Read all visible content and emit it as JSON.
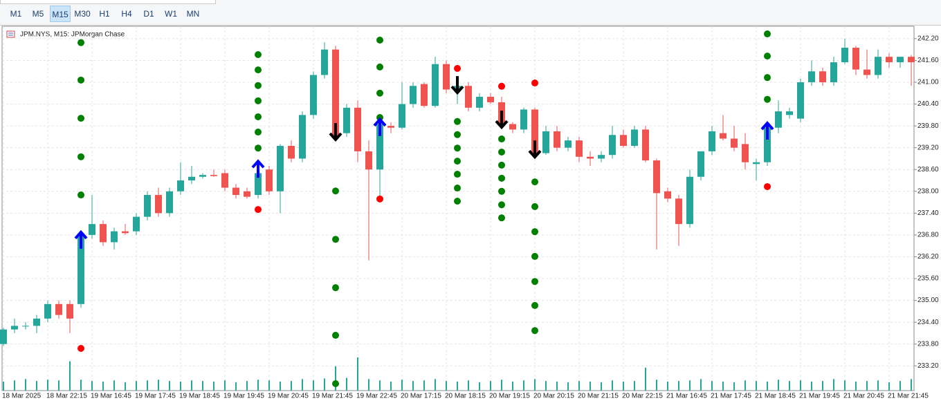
{
  "toolbar": {
    "buttons": [
      "M1",
      "M5",
      "M15",
      "M30",
      "H1",
      "H4",
      "D1",
      "W1",
      "MN"
    ],
    "active": 2
  },
  "chart_data": {
    "type": "candlestick",
    "title": "JPM.NYS, M15:  JPMorgan Chase",
    "categories": [
      "18 Mar 2025",
      null,
      null,
      null,
      "18 Mar 22:15",
      null,
      null,
      null,
      "19 Mar 16:45",
      null,
      null,
      null,
      "19 Mar 17:45",
      null,
      null,
      null,
      "19 Mar 18:45",
      null,
      null,
      null,
      "19 Mar 19:45",
      null,
      null,
      null,
      "19 Mar 20:45",
      null,
      null,
      null,
      "19 Mar 21:45",
      null,
      null,
      null,
      "19 Mar 22:45",
      null,
      null,
      null,
      "20 Mar 17:15",
      null,
      null,
      null,
      "20 Mar 18:15",
      null,
      null,
      null,
      "20 Mar 19:15",
      null,
      null,
      null,
      "20 Mar 20:15",
      null,
      null,
      null,
      "20 Mar 21:15",
      null,
      null,
      null,
      "20 Mar 22:15",
      null,
      null,
      null,
      "21 Mar 16:45",
      null,
      null,
      null,
      "21 Mar 17:45",
      null,
      null,
      null,
      "21 Mar 18:45",
      null,
      null,
      null,
      "21 Mar 19:45",
      null,
      null,
      null,
      "21 Mar 20:45",
      null,
      null,
      null,
      "21 Mar 21:45",
      null,
      null
    ],
    "open": [
      233.8,
      234.2,
      234.3,
      234.3,
      234.5,
      234.9,
      234.9,
      234.9,
      236.8,
      237.1,
      236.6,
      236.9,
      236.9,
      237.3,
      237.9,
      237.4,
      238.0,
      238.3,
      238.4,
      238.45,
      238.5,
      238.1,
      238.0,
      237.9,
      238.6,
      238.0,
      239.25,
      238.9,
      240.1,
      241.2,
      241.9,
      239.6,
      240.3,
      239.1,
      238.6,
      239.8,
      239.75,
      240.4,
      240.95,
      240.35,
      241.5,
      240.8,
      240.9,
      240.3,
      240.6,
      240.45,
      239.85,
      239.7,
      240.25,
      239.05,
      239.65,
      239.2,
      239.4,
      238.95,
      238.9,
      239.0,
      239.55,
      239.25,
      239.7,
      238.85,
      238.0,
      237.8,
      237.1,
      238.4,
      239.1,
      239.6,
      239.45,
      239.3,
      238.75,
      238.8,
      239.75,
      240.1,
      240.0,
      241.0,
      241.3,
      241.0,
      241.55,
      241.95,
      241.35,
      241.2,
      241.7,
      241.55,
      241.7
    ],
    "high": [
      234.25,
      234.5,
      234.4,
      234.6,
      235.0,
      235.0,
      235.0,
      236.9,
      237.9,
      237.2,
      237.0,
      237.1,
      237.4,
      238.0,
      238.1,
      238.1,
      238.8,
      238.7,
      238.5,
      238.6,
      238.6,
      238.2,
      238.1,
      238.7,
      238.7,
      239.3,
      239.4,
      240.2,
      241.3,
      242.1,
      242.0,
      240.4,
      240.5,
      239.4,
      239.9,
      239.9,
      241.0,
      241.0,
      241.0,
      241.7,
      241.6,
      241.1,
      241.0,
      240.7,
      240.7,
      240.6,
      239.9,
      240.3,
      240.3,
      239.8,
      239.8,
      239.5,
      239.5,
      239.1,
      239.1,
      239.8,
      239.7,
      239.8,
      239.8,
      238.9,
      238.1,
      237.9,
      238.6,
      239.1,
      239.8,
      240.1,
      239.8,
      239.6,
      238.9,
      239.8,
      240.5,
      240.3,
      241.1,
      241.6,
      241.4,
      241.7,
      242.2,
      242.0,
      241.9,
      241.9,
      241.8,
      241.7,
      241.75
    ],
    "low": [
      233.75,
      234.1,
      234.2,
      234.1,
      234.4,
      234.5,
      234.1,
      234.8,
      236.7,
      236.5,
      236.4,
      236.8,
      236.8,
      237.2,
      237.3,
      237.3,
      237.9,
      238.2,
      238.35,
      238.4,
      238.0,
      237.8,
      237.8,
      237.8,
      237.9,
      237.4,
      238.8,
      238.8,
      240.0,
      241.1,
      239.4,
      239.5,
      238.8,
      236.1,
      237.7,
      239.6,
      239.7,
      240.3,
      240.3,
      240.3,
      240.7,
      240.4,
      240.2,
      240.2,
      240.4,
      239.8,
      239.6,
      239.6,
      238.9,
      239.0,
      239.1,
      239.1,
      238.8,
      238.7,
      238.8,
      238.9,
      239.2,
      239.2,
      238.8,
      236.4,
      237.7,
      236.5,
      237.0,
      238.3,
      239.0,
      239.4,
      239.1,
      238.6,
      238.3,
      238.7,
      239.6,
      240.0,
      239.9,
      240.9,
      240.9,
      240.9,
      241.5,
      241.2,
      241.1,
      241.1,
      241.4,
      241.4,
      240.9
    ],
    "close": [
      234.2,
      234.3,
      234.3,
      234.5,
      234.9,
      234.6,
      234.5,
      236.8,
      237.1,
      236.6,
      236.9,
      236.85,
      237.3,
      237.9,
      237.4,
      238.0,
      238.3,
      238.4,
      238.45,
      238.42,
      238.1,
      237.9,
      237.85,
      238.5,
      238.0,
      239.25,
      238.9,
      240.1,
      241.2,
      241.9,
      239.5,
      240.3,
      239.1,
      238.6,
      239.85,
      239.75,
      240.4,
      240.9,
      240.35,
      241.5,
      240.8,
      240.9,
      240.3,
      240.6,
      240.45,
      239.85,
      239.7,
      240.25,
      239.05,
      239.65,
      239.2,
      239.4,
      238.95,
      238.9,
      239.0,
      239.55,
      239.25,
      239.7,
      238.85,
      237.95,
      237.8,
      237.1,
      238.4,
      239.1,
      239.65,
      239.45,
      239.2,
      238.8,
      238.8,
      239.75,
      240.2,
      240.2,
      241.0,
      241.3,
      241.0,
      241.55,
      241.95,
      241.35,
      241.2,
      241.7,
      241.55,
      241.7,
      241.55
    ],
    "volume": [
      14,
      16,
      18,
      15,
      17,
      16,
      46,
      17,
      15,
      14,
      16,
      13,
      15,
      16,
      17,
      15,
      14,
      16,
      15,
      14,
      16,
      13,
      15,
      17,
      16,
      14,
      15,
      18,
      16,
      19,
      38,
      20,
      52,
      18,
      16,
      14,
      17,
      15,
      16,
      18,
      15,
      14,
      16,
      13,
      15,
      17,
      14,
      16,
      18,
      15,
      14,
      13,
      15,
      14,
      13,
      16,
      14,
      15,
      36,
      17,
      14,
      15,
      16,
      18,
      15,
      14,
      13,
      16,
      15,
      14,
      17,
      15,
      16,
      14,
      15,
      18,
      16,
      14,
      15,
      16,
      13,
      15,
      18
    ],
    "up_color": "#26a69a",
    "down_color": "#ef5350",
    "signals": [
      {
        "index": 7,
        "direction": "up",
        "entry": 236.65,
        "stop": 233.68,
        "targets": [
          242.09,
          241.06,
          240.01,
          238.95,
          237.9
        ]
      },
      {
        "index": 23,
        "direction": "up",
        "entry": 238.6,
        "stop": 237.5,
        "targets": [
          241.76,
          241.34,
          240.91,
          240.49,
          240.05,
          239.63,
          239.19
        ]
      },
      {
        "index": 30,
        "direction": "down",
        "entry": 239.65,
        "targets": [
          238.01,
          236.68,
          235.35,
          234.04,
          232.71
        ]
      },
      {
        "index": 34,
        "direction": "up",
        "entry": 239.75,
        "stop": 237.79,
        "targets": [
          242.16,
          241.42,
          240.7,
          240.03
        ]
      },
      {
        "index": 41,
        "direction": "down",
        "entry": 240.94,
        "stop": 241.38,
        "targets": [
          239.92,
          239.56,
          239.19,
          238.83,
          238.47,
          238.09,
          237.73
        ]
      },
      {
        "index": 45,
        "direction": "down",
        "entry": 239.99,
        "stop": 240.89,
        "targets": [
          239.44,
          239.08,
          238.72,
          238.36,
          238.0,
          237.63,
          237.27
        ]
      },
      {
        "index": 48,
        "direction": "down",
        "entry": 239.17,
        "stop": 240.98,
        "targets": [
          238.26,
          237.58,
          236.89,
          236.21,
          235.52,
          234.86,
          234.17
        ]
      },
      {
        "index": 69,
        "direction": "up",
        "entry": 239.65,
        "stop": 238.13,
        "targets": [
          242.33,
          241.72,
          241.13,
          240.53
        ]
      }
    ],
    "ylim": [
      232.52,
      242.54
    ],
    "yticks": [
      {
        "value": 233.2,
        "label": "233.20"
      },
      {
        "value": 233.8,
        "label": "233.80"
      },
      {
        "value": 234.4,
        "label": "234.40"
      },
      {
        "value": 235.0,
        "label": "235.00"
      },
      {
        "value": 235.6,
        "label": "235.60"
      },
      {
        "value": 236.2,
        "label": "236.20"
      },
      {
        "value": 236.8,
        "label": "236.80"
      },
      {
        "value": 237.4,
        "label": "237.40"
      },
      {
        "value": 238.0,
        "label": "238.00"
      },
      {
        "value": 238.6,
        "label": "238.60"
      },
      {
        "value": 239.2,
        "label": "239.20"
      },
      {
        "value": 239.8,
        "label": "239.80"
      },
      {
        "value": 240.4,
        "label": "240.40"
      },
      {
        "value": 241.0,
        "label": "241.00"
      },
      {
        "value": 241.6,
        "label": "241.60"
      },
      {
        "value": 242.2,
        "label": "242.20"
      }
    ],
    "grid": true
  }
}
